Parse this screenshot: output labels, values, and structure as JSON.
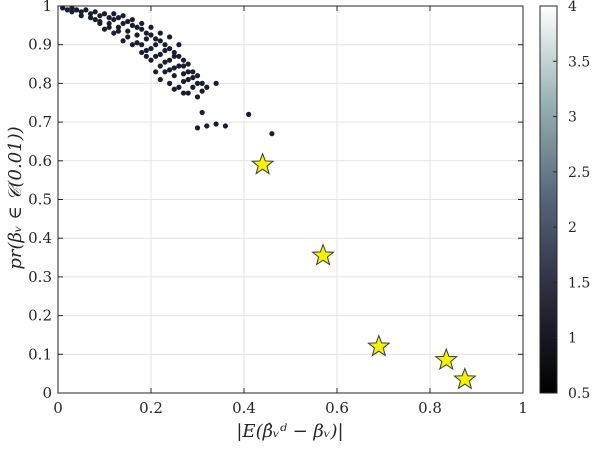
{
  "chart_data": {
    "type": "scatter",
    "title": "",
    "xlabel": "|E(β̂ᵥᵈ − βᵥ)|",
    "ylabel": "pr(βᵥ ∈ 𝒞(0.01))",
    "xlim": [
      0,
      1
    ],
    "ylim": [
      0,
      1
    ],
    "xticks": [
      "0",
      "0.2",
      "0.4",
      "0.6",
      "0.8",
      "1"
    ],
    "yticks": [
      "0",
      "0.1",
      "0.2",
      "0.3",
      "0.4",
      "0.5",
      "0.6",
      "0.7",
      "0.8",
      "0.9",
      "1"
    ],
    "grid": true,
    "colorbar": {
      "range": [
        0.5,
        4
      ],
      "ticks": [
        "0.5",
        "1",
        "1.5",
        "2",
        "2.5",
        "3",
        "3.5",
        "4"
      ],
      "colormap": "bone"
    },
    "series": [
      {
        "marker": "dot",
        "color": "#1a1d2e",
        "points": [
          [
            0.01,
            0.995
          ],
          [
            0.02,
            0.99
          ],
          [
            0.03,
            0.995
          ],
          [
            0.04,
            0.99
          ],
          [
            0.05,
            0.985
          ],
          [
            0.06,
            0.99
          ],
          [
            0.07,
            0.98
          ],
          [
            0.08,
            0.985
          ],
          [
            0.09,
            0.975
          ],
          [
            0.1,
            0.98
          ],
          [
            0.11,
            0.97
          ],
          [
            0.12,
            0.965
          ],
          [
            0.13,
            0.97
          ],
          [
            0.14,
            0.955
          ],
          [
            0.15,
            0.96
          ],
          [
            0.16,
            0.95
          ],
          [
            0.17,
            0.945
          ],
          [
            0.18,
            0.94
          ],
          [
            0.19,
            0.93
          ],
          [
            0.2,
            0.925
          ],
          [
            0.21,
            0.915
          ],
          [
            0.22,
            0.91
          ],
          [
            0.23,
            0.9
          ],
          [
            0.24,
            0.89
          ],
          [
            0.25,
            0.88
          ],
          [
            0.26,
            0.87
          ],
          [
            0.27,
            0.86
          ],
          [
            0.28,
            0.85
          ],
          [
            0.03,
            0.985
          ],
          [
            0.05,
            0.975
          ],
          [
            0.07,
            0.97
          ],
          [
            0.09,
            0.96
          ],
          [
            0.11,
            0.955
          ],
          [
            0.13,
            0.945
          ],
          [
            0.15,
            0.935
          ],
          [
            0.17,
            0.925
          ],
          [
            0.19,
            0.915
          ],
          [
            0.21,
            0.9
          ],
          [
            0.23,
            0.885
          ],
          [
            0.25,
            0.87
          ],
          [
            0.27,
            0.845
          ],
          [
            0.29,
            0.83
          ],
          [
            0.12,
            0.98
          ],
          [
            0.14,
            0.975
          ],
          [
            0.16,
            0.965
          ],
          [
            0.18,
            0.955
          ],
          [
            0.2,
            0.945
          ],
          [
            0.22,
            0.93
          ],
          [
            0.24,
            0.92
          ],
          [
            0.26,
            0.9
          ],
          [
            0.18,
            0.9
          ],
          [
            0.2,
            0.89
          ],
          [
            0.22,
            0.875
          ],
          [
            0.24,
            0.86
          ],
          [
            0.26,
            0.845
          ],
          [
            0.28,
            0.83
          ],
          [
            0.3,
            0.82
          ],
          [
            0.21,
            0.87
          ],
          [
            0.23,
            0.855
          ],
          [
            0.25,
            0.84
          ],
          [
            0.27,
            0.825
          ],
          [
            0.29,
            0.815
          ],
          [
            0.31,
            0.8
          ],
          [
            0.19,
            0.885
          ],
          [
            0.17,
            0.905
          ],
          [
            0.15,
            0.92
          ],
          [
            0.13,
            0.935
          ],
          [
            0.11,
            0.945
          ],
          [
            0.09,
            0.955
          ],
          [
            0.08,
            0.965
          ],
          [
            0.23,
            0.83
          ],
          [
            0.25,
            0.82
          ],
          [
            0.27,
            0.805
          ],
          [
            0.29,
            0.79
          ],
          [
            0.2,
            0.86
          ],
          [
            0.22,
            0.845
          ],
          [
            0.24,
            0.835
          ],
          [
            0.19,
            0.87
          ],
          [
            0.18,
            0.88
          ],
          [
            0.16,
            0.9
          ],
          [
            0.14,
            0.91
          ],
          [
            0.12,
            0.93
          ],
          [
            0.1,
            0.94
          ],
          [
            0.28,
            0.81
          ],
          [
            0.31,
            0.78
          ],
          [
            0.3,
            0.765
          ],
          [
            0.27,
            0.775
          ],
          [
            0.25,
            0.785
          ],
          [
            0.22,
            0.81
          ],
          [
            0.21,
            0.83
          ],
          [
            0.24,
            0.8
          ],
          [
            0.26,
            0.79
          ],
          [
            0.28,
            0.775
          ],
          [
            0.32,
            0.79
          ],
          [
            0.3,
            0.8
          ],
          [
            0.34,
            0.8
          ],
          [
            0.31,
            0.725
          ],
          [
            0.41,
            0.72
          ],
          [
            0.3,
            0.685
          ],
          [
            0.32,
            0.69
          ],
          [
            0.34,
            0.695
          ],
          [
            0.36,
            0.69
          ],
          [
            0.46,
            0.67
          ]
        ]
      },
      {
        "marker": "star",
        "color": "#f4f400",
        "points": [
          [
            0.44,
            0.59
          ],
          [
            0.57,
            0.355
          ],
          [
            0.69,
            0.12
          ],
          [
            0.835,
            0.085
          ],
          [
            0.875,
            0.035
          ]
        ]
      }
    ]
  }
}
